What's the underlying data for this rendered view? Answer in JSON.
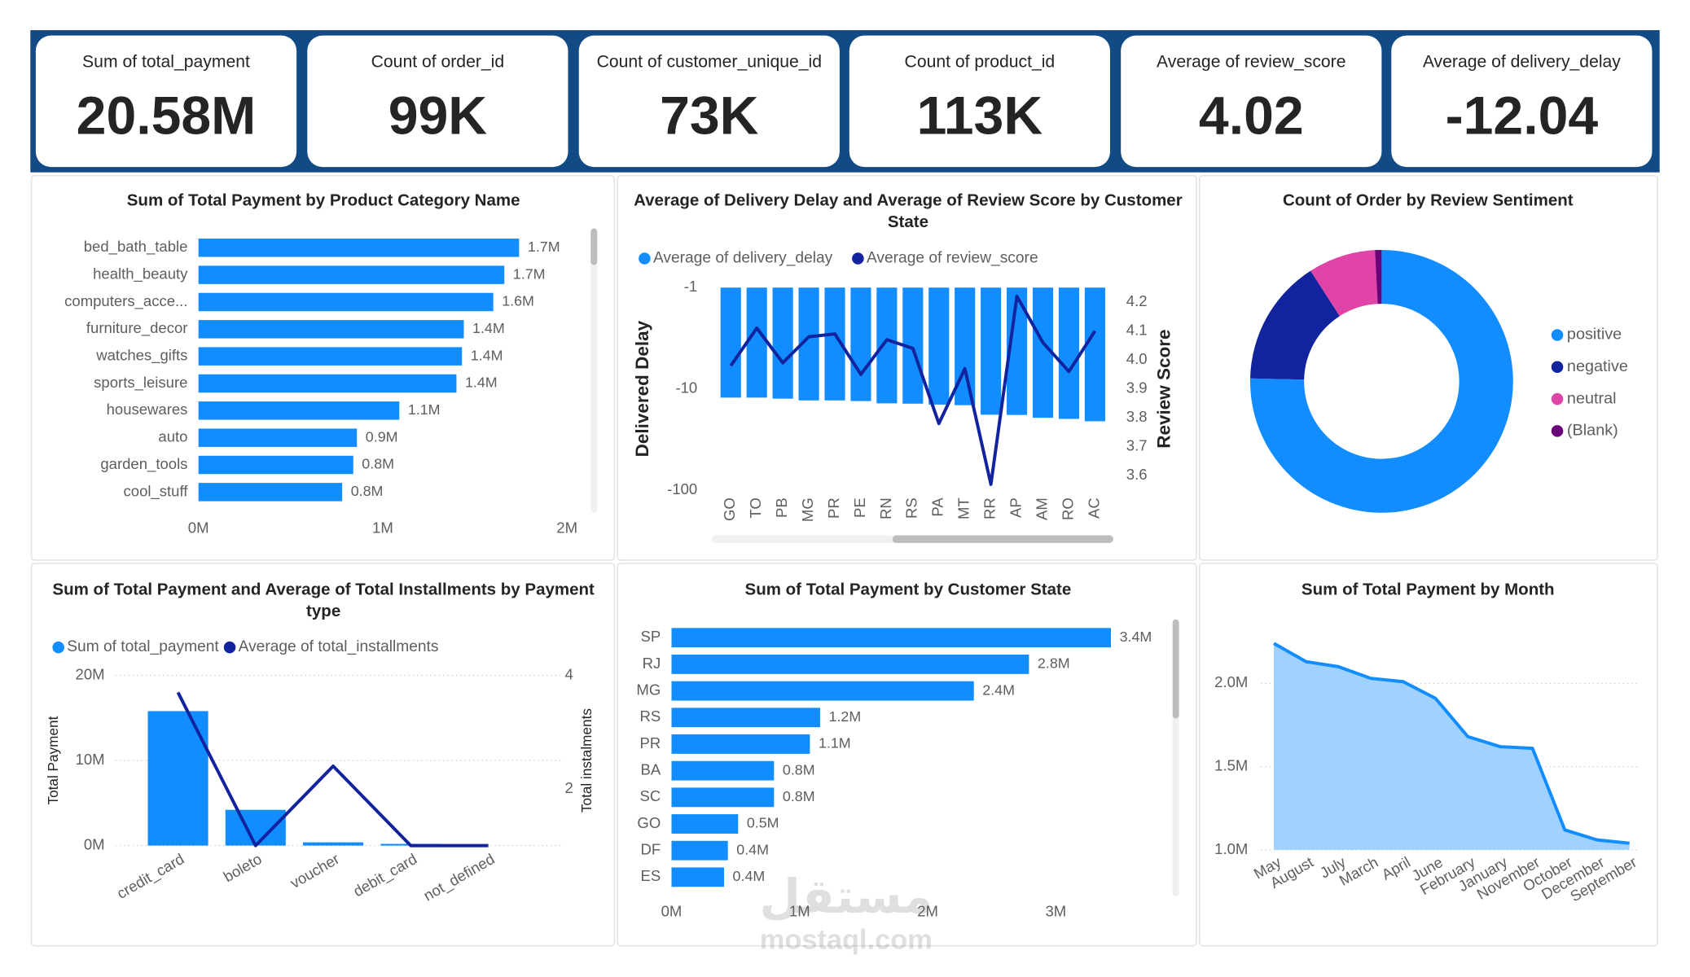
{
  "kpis": [
    {
      "label": "Sum of total_payment",
      "value": "20.58M"
    },
    {
      "label": "Count of order_id",
      "value": "99K"
    },
    {
      "label": "Count of customer_unique_id",
      "value": "73K"
    },
    {
      "label": "Count of product_id",
      "value": "113K"
    },
    {
      "label": "Average of review_score",
      "value": "4.02"
    },
    {
      "label": "Average of delivery_delay",
      "value": "-12.04"
    }
  ],
  "watermark": [
    "مستقل",
    "mostaql.com"
  ],
  "chart_data": [
    {
      "type": "bar",
      "orientation": "horizontal",
      "title": "Sum of Total Payment by Product Category Name",
      "categories": [
        "bed_bath_table",
        "health_beauty",
        "computers_acce...",
        "furniture_decor",
        "watches_gifts",
        "sports_leisure",
        "housewares",
        "auto",
        "garden_tools",
        "cool_stuff"
      ],
      "values": [
        1740000,
        1660000,
        1600000,
        1440000,
        1430000,
        1400000,
        1090000,
        860000,
        840000,
        780000
      ],
      "value_labels": [
        "1.7M",
        "1.7M",
        "1.6M",
        "1.4M",
        "1.4M",
        "1.4M",
        "1.1M",
        "0.9M",
        "0.8M",
        "0.8M"
      ],
      "color": "#118dff",
      "xlim": [
        0,
        2000000
      ],
      "xticks": [
        {
          "value": 0,
          "label": "0M"
        },
        {
          "value": 1000000,
          "label": "1M"
        },
        {
          "value": 2000000,
          "label": "2M"
        }
      ],
      "grid": false
    },
    {
      "type": "bar_line",
      "title": "Average of Delivery Delay and Average of Review Score by Customer State",
      "categories": [
        "GO",
        "TO",
        "PB",
        "MG",
        "PR",
        "PE",
        "RN",
        "RS",
        "PA",
        "MT",
        "RR",
        "AP",
        "AM",
        "RO",
        "AC"
      ],
      "series": [
        {
          "name": "Average of delivery_delay",
          "type": "bar",
          "color": "#118dff",
          "values": [
            -12.2,
            -12.2,
            -12.5,
            -13.0,
            -13.0,
            -13.2,
            -13.9,
            -14.0,
            -14.3,
            -14.5,
            -18.0,
            -18.1,
            -19.3,
            -19.8,
            -20.9
          ]
        },
        {
          "name": "Average of review_score",
          "type": "line",
          "axis": "y2",
          "color": "#12239e",
          "values": [
            3.98,
            4.11,
            3.99,
            4.08,
            4.09,
            3.95,
            4.07,
            4.04,
            3.78,
            3.97,
            3.57,
            4.22,
            4.06,
            3.96,
            4.1
          ]
        }
      ],
      "ylabel": "Delivered Delay",
      "y2label": "Review Score",
      "log_scale": true,
      "ylim": [
        -100,
        -1
      ],
      "yticks": [
        -100,
        -10,
        -1
      ],
      "y2lim": [
        3.55,
        4.25
      ],
      "y2ticks": [
        3.6,
        3.7,
        3.8,
        3.9,
        {
          "value": 4,
          "label": "4.0"
        },
        4.1,
        4.2
      ],
      "grid": false
    },
    {
      "type": "donut",
      "title": "Count of Order by Review Sentiment",
      "categories": [
        "positive",
        "negative",
        "neutral",
        "(Blank)"
      ],
      "values": [
        74600,
        15400,
        8200,
        800
      ],
      "colors": [
        "#118dff",
        "#12239e",
        "#e044a7",
        "#6b007b"
      ]
    },
    {
      "type": "bar_line",
      "title": "Sum of Total Payment and Average of Total Installments by Payment type",
      "categories": [
        "credit_card",
        "boleto",
        "voucher",
        "debit_card",
        "not_defined"
      ],
      "series": [
        {
          "name": "Sum of total_payment",
          "type": "bar",
          "color": "#118dff",
          "values": [
            15800000,
            4200000,
            380000,
            200000,
            0
          ]
        },
        {
          "name": "Average of total_installments",
          "type": "line",
          "axis": "y2",
          "color": "#12239e",
          "values": [
            3.7,
            1.0,
            2.4,
            1.0,
            1.0
          ]
        }
      ],
      "ylabel": "Total Payment",
      "y2label": "Total instalments",
      "ylim": [
        0,
        20000000
      ],
      "yticks": [
        {
          "value": 0,
          "label": "0M"
        },
        {
          "value": 10000000,
          "label": "10M"
        },
        {
          "value": 20000000,
          "label": "20M"
        }
      ],
      "y2lim": [
        1,
        4
      ],
      "y2ticks": [
        2,
        4
      ],
      "grid": true
    },
    {
      "type": "bar",
      "orientation": "horizontal",
      "title": "Sum of Total Payment by Customer State",
      "categories": [
        "SP",
        "RJ",
        "MG",
        "RS",
        "PR",
        "BA",
        "SC",
        "GO",
        "DF",
        "ES"
      ],
      "values": [
        3430000,
        2790000,
        2360000,
        1160000,
        1080000,
        800000,
        800000,
        520000,
        440000,
        410000
      ],
      "value_labels": [
        "3.4M",
        "2.8M",
        "2.4M",
        "1.2M",
        "1.1M",
        "0.8M",
        "0.8M",
        "0.5M",
        "0.4M",
        "0.4M"
      ],
      "color": "#118dff",
      "xlim": [
        0,
        3600000
      ],
      "xticks": [
        {
          "value": 0,
          "label": "0M"
        },
        {
          "value": 1000000,
          "label": "1M"
        },
        {
          "value": 2000000,
          "label": "2M"
        },
        {
          "value": 3000000,
          "label": "3M"
        }
      ],
      "grid": false
    },
    {
      "type": "area",
      "title": "Sum of Total Payment by Month",
      "categories": [
        "May",
        "August",
        "July",
        "March",
        "April",
        "June",
        "February",
        "January",
        "November",
        "October",
        "December",
        "September"
      ],
      "values": [
        2240000,
        2130000,
        2100000,
        2030000,
        2010000,
        1910000,
        1680000,
        1620000,
        1610000,
        1120000,
        1060000,
        1040000
      ],
      "color": "#118dff",
      "area_color": "#a0d1ff",
      "ylim": [
        1000000,
        2300000
      ],
      "yticks": [
        {
          "value": 1000000,
          "label": "1.0M"
        },
        {
          "value": 1500000,
          "label": "1.5M"
        },
        {
          "value": 2000000,
          "label": "2.0M"
        }
      ],
      "grid": true
    }
  ]
}
